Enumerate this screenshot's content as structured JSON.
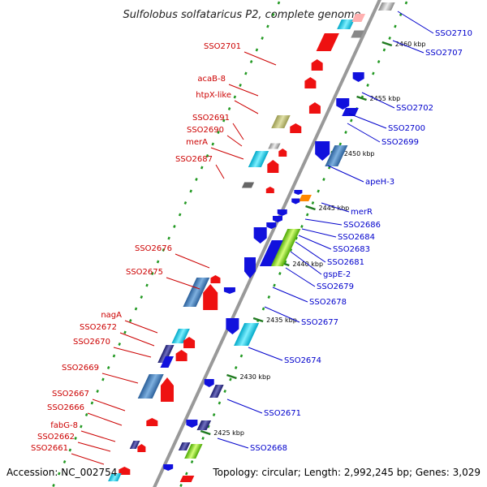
{
  "title": "Sulfolobus solfataricus P2, complete genome",
  "footer": {
    "accession": "Accession: NC_002754",
    "topology": "Topology: circular; Length: 2,992,245 bp; Genes: 3,029"
  },
  "colors": {
    "red": "#cc0000",
    "blue": "#0000cc",
    "backbone": "#999999",
    "ticks": "#229922"
  },
  "kbp_marks": [
    "2460 kbp",
    "2455 kbp",
    "2450 kbp",
    "2445 kbp",
    "2440 kbp",
    "2435 kbp",
    "2430 kbp",
    "2425 kbp"
  ],
  "left_labels": [
    "SSO2701",
    "acaB-8",
    "htpX-like",
    "SSO2691",
    "SSO2690",
    "merA",
    "SSO2687",
    "SSO2676",
    "SSO2675",
    "nagA",
    "SSO2672",
    "SSO2670",
    "SSO2669",
    "SSO2667",
    "SSO2666",
    "fabG-8",
    "SSO2662",
    "SSO2661"
  ],
  "right_labels": [
    "SSO2710",
    "SSO2707",
    "SSO2702",
    "SSO2700",
    "SSO2699",
    "apeH-3",
    "merR",
    "SSO2686",
    "SSO2684",
    "SSO2683",
    "SSO2681",
    "gspE-2",
    "SSO2679",
    "SSO2678",
    "SSO2677",
    "SSO2674",
    "SSO2671",
    "SSO2668"
  ]
}
